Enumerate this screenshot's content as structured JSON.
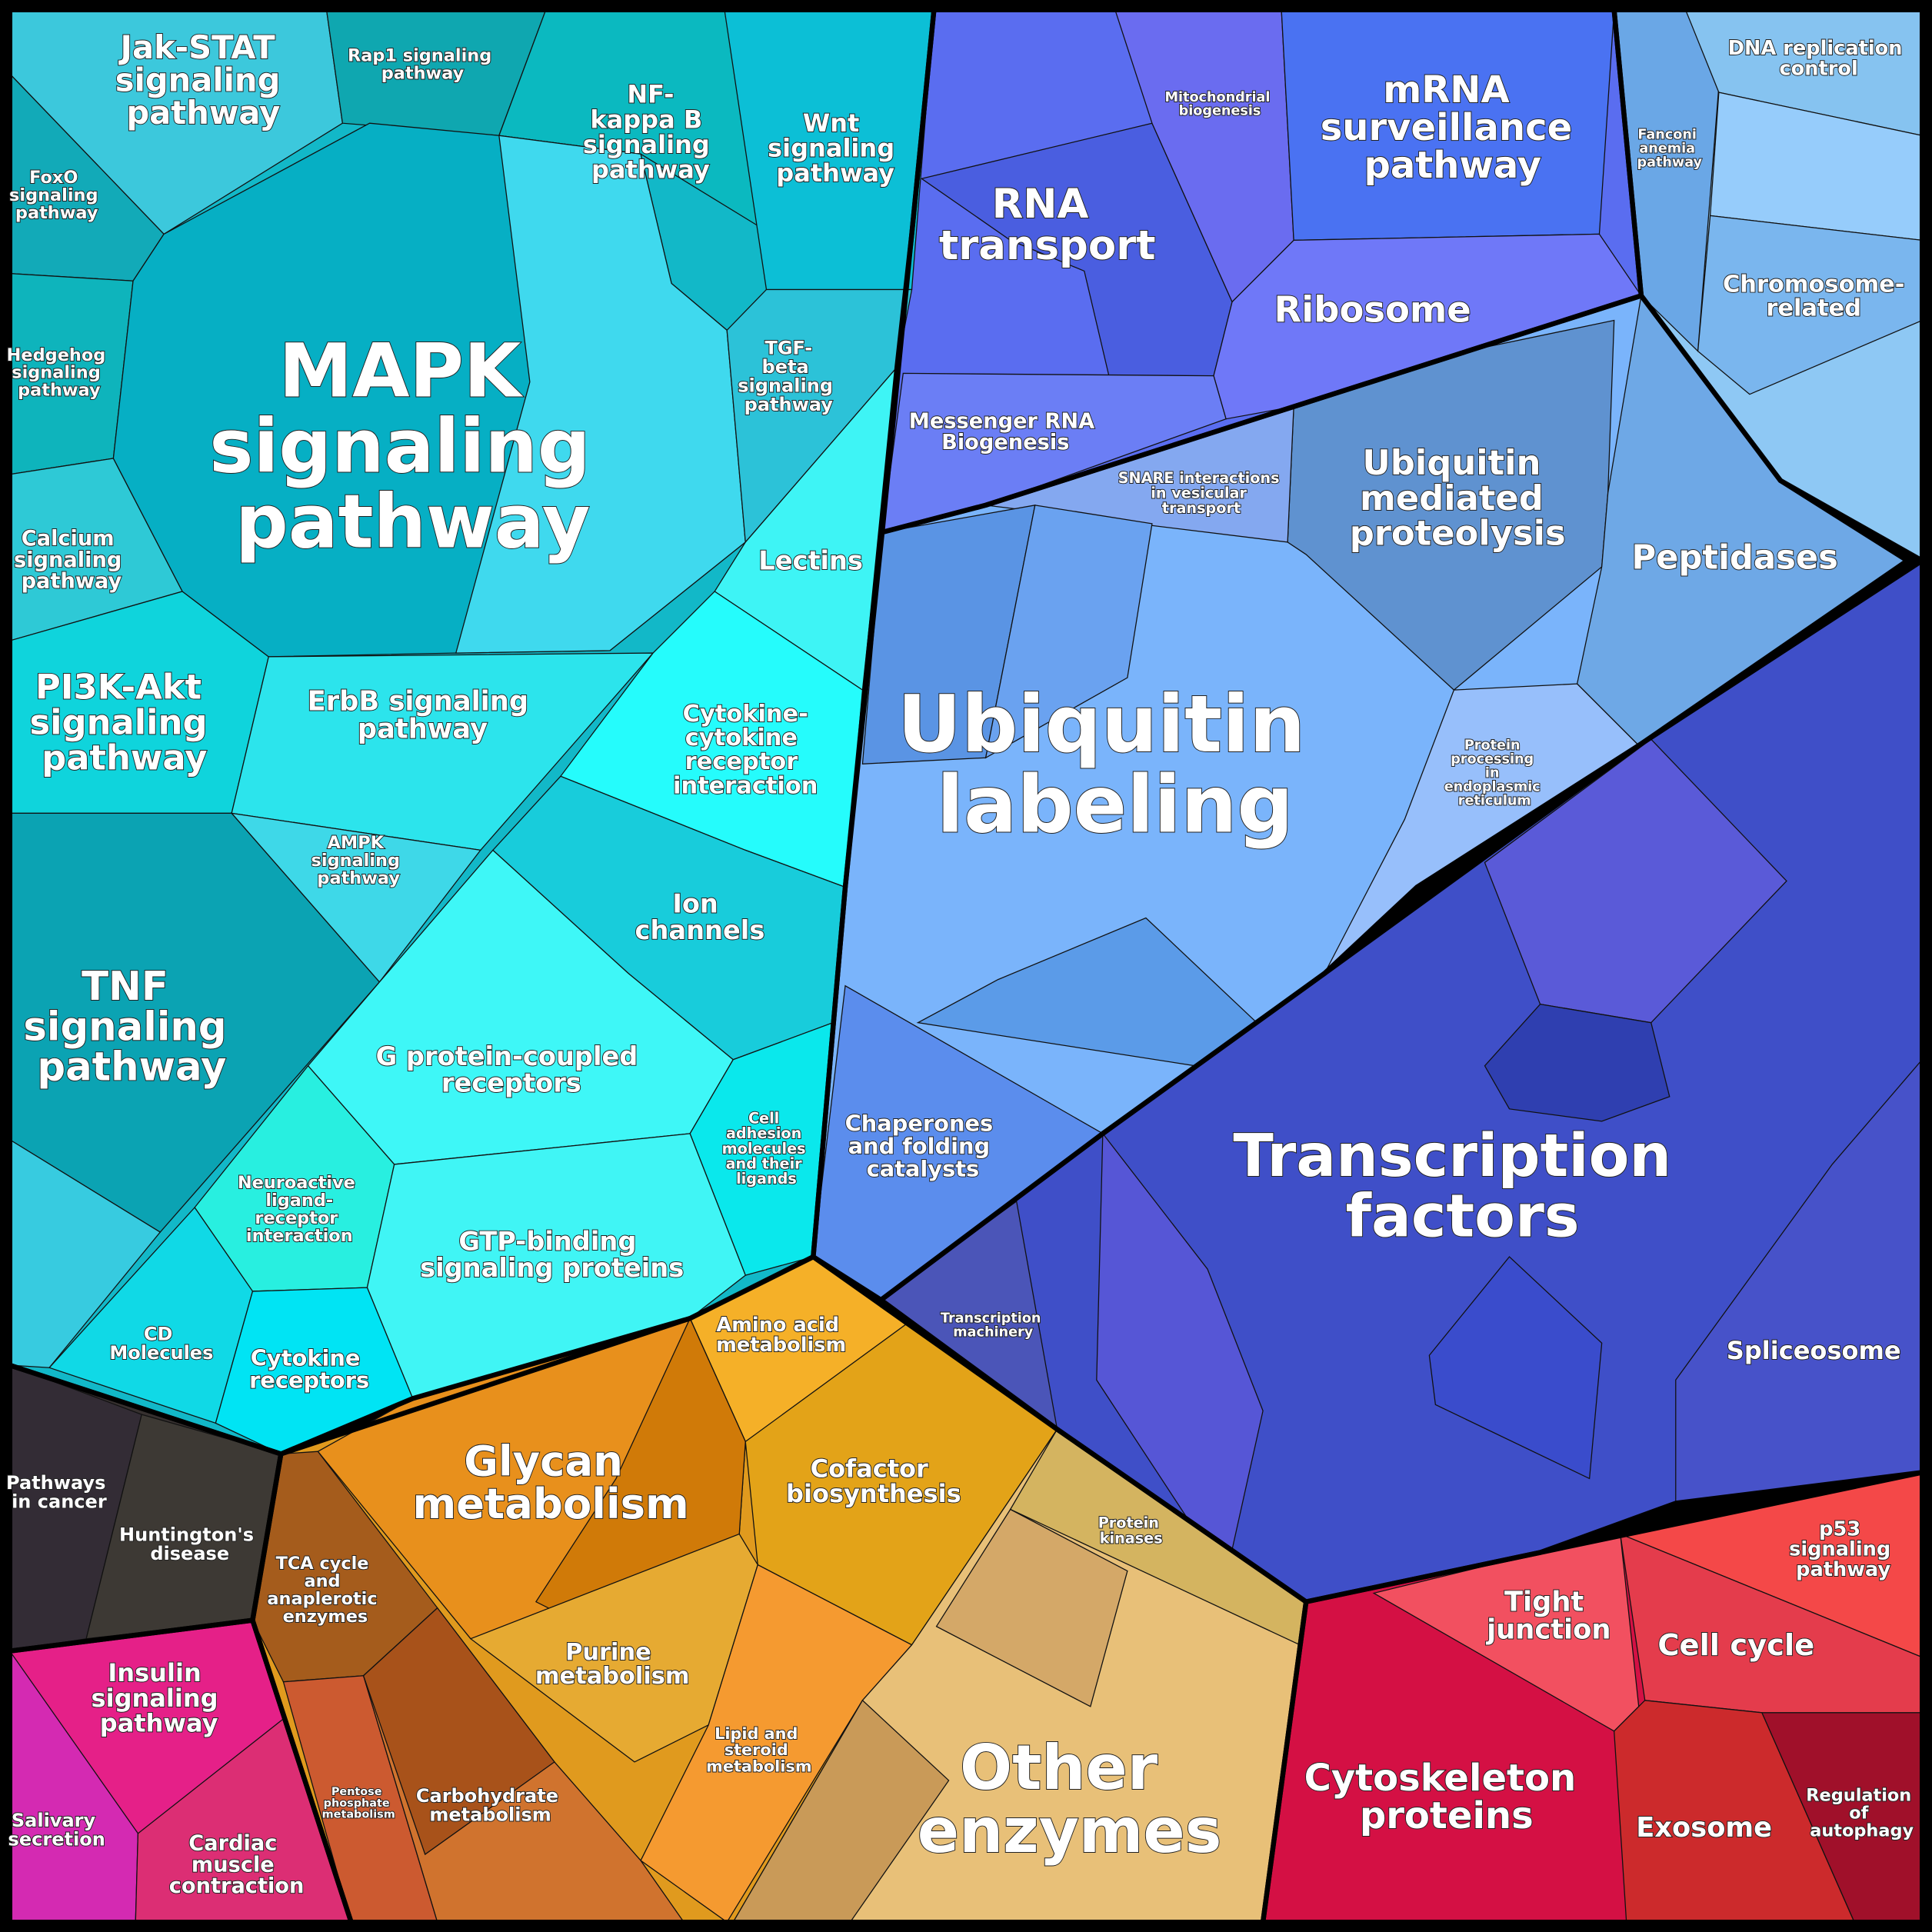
{
  "cells": [
    "Jak-STAT signaling pathway",
    "Rap1 signaling pathway",
    "NF-kappa B signaling pathway",
    "Wnt signaling pathway",
    "FoxO signaling pathway",
    "Hedgehog signaling pathway",
    "MAPK signaling pathway",
    "TGF-beta signaling pathway",
    "Calcium signaling pathway",
    "PI3K-Akt signaling pathway",
    "ErbB signaling pathway",
    "Lectins",
    "Cytokine-cytokine receptor interaction",
    "AMPK signaling pathway",
    "Ion channels",
    "TNF signaling pathway",
    "G protein-coupled receptors",
    "Cell adhesion molecules and their ligands",
    "Neuroactive ligand-receptor interaction",
    "GTP-binding signaling proteins",
    "CD Molecules",
    "Cytokine receptors",
    "RNA transport",
    "Mitochondrial biogenesis",
    "mRNA surveillance pathway",
    "Ribosome",
    "Messenger RNA Biogenesis",
    "SNARE interactions in vesicular transport",
    "Ubiquitin mediated proteolysis",
    "Fanconi anemia pathway",
    "DNA replication control",
    "Chromosome-related",
    "Peptidases",
    "Ubiquitin labeling",
    "Protein processing in endoplasmic reticulum",
    "Chaperones and folding catalysts",
    "Transcription factors",
    "Transcription machinery",
    "Spliceosome",
    "Amino acid metabolism",
    "Glycan metabolism",
    "Cofactor biosynthesis",
    "TCA cycle and anaplerotic enzymes",
    "Purine metabolism",
    "Lipid and steroid metabolism",
    "Pentose phosphate metabolism",
    "Carbohydrate metabolism",
    "Protein kinases",
    "Other enzymes",
    "Pathways in cancer",
    "Huntington's disease",
    "Insulin signaling pathway",
    "Salivary secretion",
    "Cardiac muscle contraction",
    "Tight junction",
    "p53 signaling pathway",
    "Cell cycle",
    "Cytoskeleton proteins",
    "Exosome",
    "Regulation of autophagy"
  ]
}
